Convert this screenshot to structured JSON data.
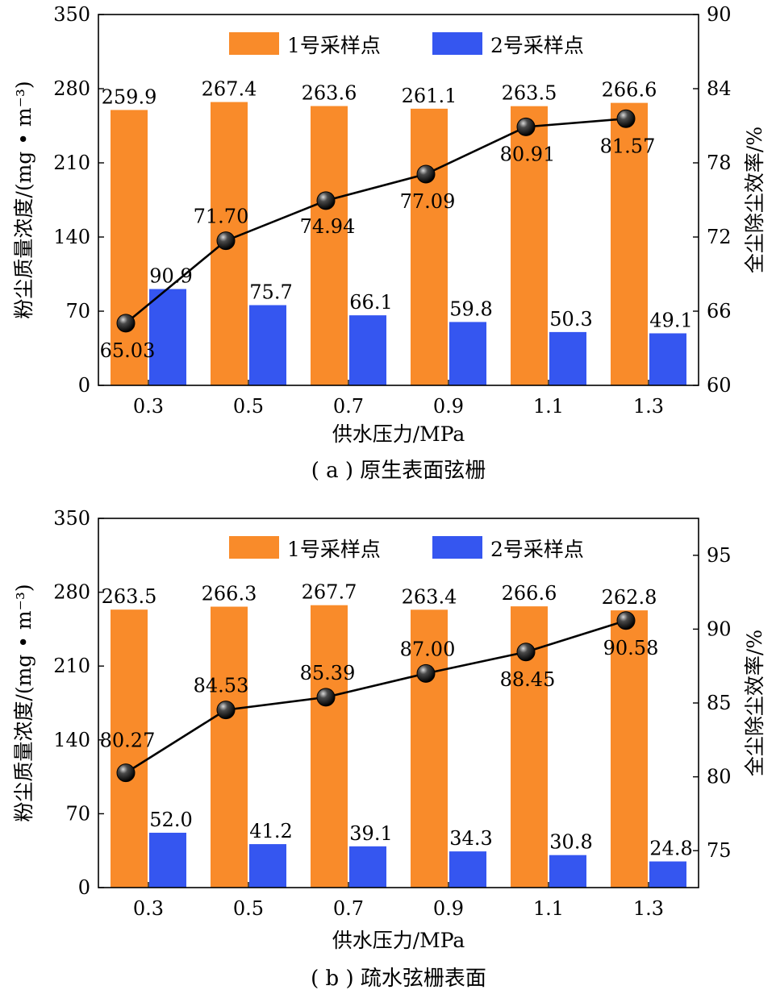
{
  "colors": {
    "site1": "#F98B2A",
    "site2": "#3556F0",
    "line": "#000000"
  },
  "chart_data": [
    {
      "type": "bar",
      "caption": "( a ) 原生表面弦栅",
      "categories": [
        "0.3",
        "0.5",
        "0.7",
        "0.9",
        "1.1",
        "1.3"
      ],
      "xlabel": "供水压力/MPa",
      "ylabel": "粉尘质量浓度/(mg • m⁻³)",
      "ylabel_right": "全尘除尘效率/%",
      "ylim": [
        0,
        350
      ],
      "yticks": [
        0,
        70,
        140,
        210,
        280,
        350
      ],
      "ylim_right": [
        60,
        90
      ],
      "yticks_right": [
        60,
        66,
        72,
        78,
        84,
        90
      ],
      "legend_position": "top",
      "series": [
        {
          "name": "1号采样点",
          "kind": "bar",
          "axis": "left",
          "values": [
            259.9,
            267.4,
            263.6,
            261.1,
            263.5,
            266.6
          ],
          "labels": [
            "259.9",
            "267.4",
            "263.6",
            "261.1",
            "263.5",
            "266.6"
          ]
        },
        {
          "name": "2号采样点",
          "kind": "bar",
          "axis": "left",
          "values": [
            90.9,
            75.7,
            66.1,
            59.8,
            50.3,
            49.1
          ],
          "labels": [
            "90.9",
            "75.7",
            "66.1",
            "59.8",
            "50.3",
            "49.1"
          ]
        },
        {
          "kind": "line",
          "axis": "right",
          "values": [
            65.03,
            71.7,
            74.94,
            77.09,
            80.91,
            81.57
          ],
          "labels": [
            "65.03",
            "71.70",
            "74.94",
            "77.09",
            "80.91",
            "81.57"
          ]
        }
      ]
    },
    {
      "type": "bar",
      "caption": "( b ) 疏水弦栅表面",
      "categories": [
        "0.3",
        "0.5",
        "0.7",
        "0.9",
        "1.1",
        "1.3"
      ],
      "xlabel": "供水压力/MPa",
      "ylabel": "粉尘质量浓度/(mg • m⁻³)",
      "ylabel_right": "全尘除尘效率/%",
      "ylim": [
        0,
        350
      ],
      "yticks": [
        0,
        70,
        140,
        210,
        280,
        350
      ],
      "ylim_right": [
        72.5,
        97.5
      ],
      "yticks_right": [
        75,
        80,
        85,
        90,
        95
      ],
      "legend_position": "top",
      "series": [
        {
          "name": "1号采样点",
          "kind": "bar",
          "axis": "left",
          "values": [
            263.5,
            266.3,
            267.7,
            263.4,
            266.6,
            262.8
          ],
          "labels": [
            "263.5",
            "266.3",
            "267.7",
            "263.4",
            "266.6",
            "262.8"
          ]
        },
        {
          "name": "2号采样点",
          "kind": "bar",
          "axis": "left",
          "values": [
            52.0,
            41.2,
            39.1,
            34.3,
            30.8,
            24.8
          ],
          "labels": [
            "52.0",
            "41.2",
            "39.1",
            "34.3",
            "30.8",
            "24.8"
          ]
        },
        {
          "kind": "line",
          "axis": "right",
          "values": [
            80.27,
            84.53,
            85.39,
            87.0,
            88.45,
            90.58
          ],
          "labels": [
            "80.27",
            "84.53",
            "85.39",
            "87.00",
            "88.45",
            "90.58"
          ]
        }
      ]
    }
  ]
}
